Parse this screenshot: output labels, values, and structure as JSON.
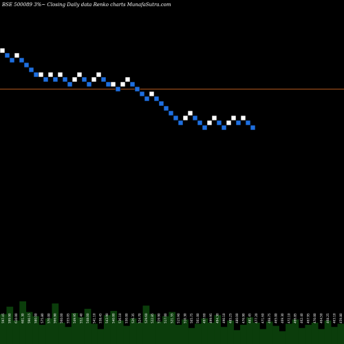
{
  "chart_data": {
    "type": "renko",
    "title": "BSE 500089 3%~  Closing Daily data  Renko  charts MunafaSutra.com",
    "reference_line_color": "#b35a1f",
    "up_brick_color": "#ffffff",
    "down_brick_color": "#1e6fe0",
    "volume_color": "#0b3d0b",
    "grid": false,
    "ylim": [
      1,
      32
    ],
    "reference_level": 13.5,
    "bricks": [
      {
        "dir": "up",
        "level": 22
      },
      {
        "dir": "down",
        "level": 21
      },
      {
        "dir": "down",
        "level": 20
      },
      {
        "dir": "up",
        "level": 21
      },
      {
        "dir": "down",
        "level": 20
      },
      {
        "dir": "down",
        "level": 19
      },
      {
        "dir": "down",
        "level": 18
      },
      {
        "dir": "down",
        "level": 17
      },
      {
        "dir": "up",
        "level": 17
      },
      {
        "dir": "down",
        "level": 16
      },
      {
        "dir": "up",
        "level": 17
      },
      {
        "dir": "down",
        "level": 16
      },
      {
        "dir": "up",
        "level": 17
      },
      {
        "dir": "down",
        "level": 16
      },
      {
        "dir": "down",
        "level": 15
      },
      {
        "dir": "up",
        "level": 16
      },
      {
        "dir": "up",
        "level": 17
      },
      {
        "dir": "down",
        "level": 16
      },
      {
        "dir": "down",
        "level": 15
      },
      {
        "dir": "up",
        "level": 16
      },
      {
        "dir": "up",
        "level": 17
      },
      {
        "dir": "down",
        "level": 16
      },
      {
        "dir": "down",
        "level": 15
      },
      {
        "dir": "up",
        "level": 15
      },
      {
        "dir": "down",
        "level": 14
      },
      {
        "dir": "up",
        "level": 15
      },
      {
        "dir": "up",
        "level": 16
      },
      {
        "dir": "down",
        "level": 15
      },
      {
        "dir": "down",
        "level": 14
      },
      {
        "dir": "down",
        "level": 13
      },
      {
        "dir": "down",
        "level": 12
      },
      {
        "dir": "up",
        "level": 13
      },
      {
        "dir": "down",
        "level": 12
      },
      {
        "dir": "down",
        "level": 11
      },
      {
        "dir": "down",
        "level": 10
      },
      {
        "dir": "down",
        "level": 9
      },
      {
        "dir": "down",
        "level": 8
      },
      {
        "dir": "down",
        "level": 7
      },
      {
        "dir": "up",
        "level": 8
      },
      {
        "dir": "up",
        "level": 9
      },
      {
        "dir": "down",
        "level": 8
      },
      {
        "dir": "down",
        "level": 7
      },
      {
        "dir": "down",
        "level": 6
      },
      {
        "dir": "up",
        "level": 7
      },
      {
        "dir": "up",
        "level": 8
      },
      {
        "dir": "down",
        "level": 7
      },
      {
        "dir": "down",
        "level": 6
      },
      {
        "dir": "up",
        "level": 7
      },
      {
        "dir": "up",
        "level": 8
      },
      {
        "dir": "down",
        "level": 7
      },
      {
        "dir": "up",
        "level": 8
      },
      {
        "dir": "down",
        "level": 7
      },
      {
        "dir": "down",
        "level": 6
      }
    ],
    "volume_labels": [
      "597.45",
      "599.90",
      "610.00",
      "601.30",
      "590.15",
      "580.00",
      "575.80",
      "570.00",
      "566.90",
      "560.00",
      "555.05",
      "549.95",
      "552.40",
      "548.00",
      "541.10",
      "538.45",
      "543.90",
      "540.00",
      "536.10",
      "530.00",
      "526.35",
      "524.70",
      "529.60",
      "522.85",
      "519.90",
      "517.00",
      "521.55",
      "515.90",
      "510.30",
      "505.75",
      "501.00",
      "497.60",
      "499.95",
      "494.30",
      "490.10",
      "485.25",
      "480.00",
      "476.90",
      "481.45",
      "477.20",
      "471.60",
      "468.75",
      "465.00",
      "469.30",
      "472.10",
      "466.85",
      "462.40",
      "467.95",
      "470.00",
      "464.50",
      "468.25",
      "463.10",
      "459.80"
    ],
    "volume_values": [
      28,
      35,
      22,
      40,
      30,
      26,
      18,
      24,
      38,
      20,
      16,
      29,
      25,
      33,
      19,
      14,
      27,
      31,
      22,
      17,
      24,
      20,
      36,
      28,
      21,
      26,
      30,
      18,
      23,
      15,
      19,
      24,
      20,
      27,
      16,
      22,
      13,
      18,
      25,
      20,
      14,
      21,
      17,
      12,
      19,
      23,
      15,
      18,
      20,
      14,
      22,
      16,
      19
    ]
  }
}
